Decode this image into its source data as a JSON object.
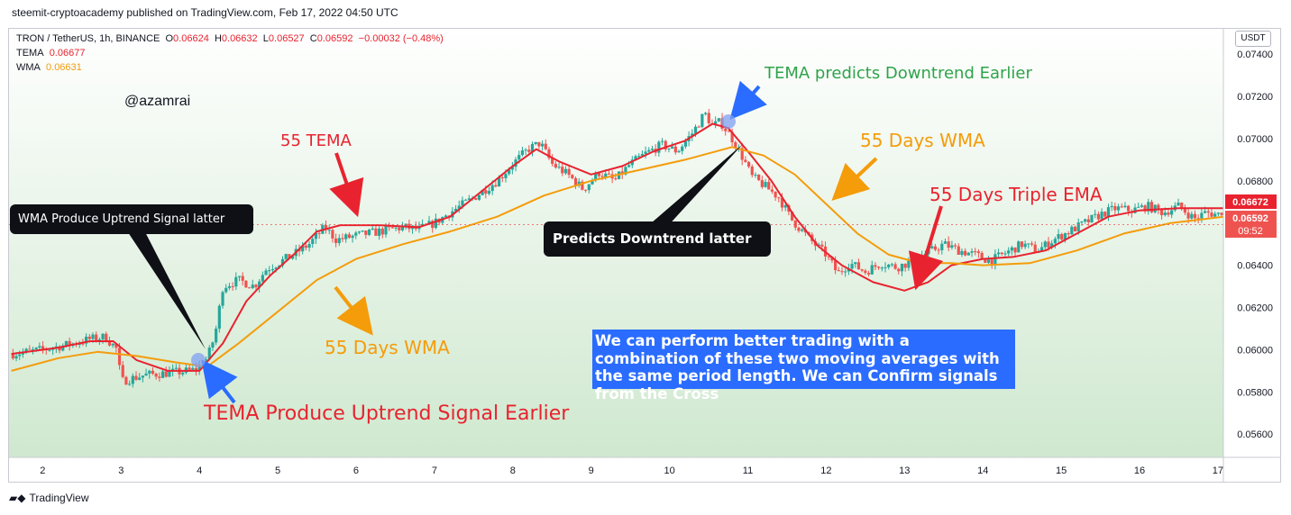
{
  "header": {
    "published": "steemit-cryptoacademy published on TradingView.com, Feb 17, 2022 04:50 UTC"
  },
  "legend": {
    "symbol": "TRON / TetherUS, 1h, BINANCE",
    "o_label": "O",
    "o_value": "0.06624",
    "h_label": "H",
    "h_value": "0.06632",
    "l_label": "L",
    "l_value": "0.06527",
    "c_label": "C",
    "c_value": "0.06592",
    "change": "−0.00032 (−0.48%)",
    "tema_label": "TEMA",
    "tema_value": "0.06677",
    "wma_label": "WMA",
    "wma_value": "0.06631"
  },
  "handle": "@azamrai",
  "currency_button": "USDT",
  "annotations": {
    "tema_downtrend": "TEMA predicts Downtrend Earlier",
    "tema_55": "55 TEMA",
    "wma_55_top": "55 Days WMA",
    "triple_ema": "55 Days Triple EMA",
    "wma_55_bottom": "55 Days WMA",
    "tema_uptrend": "TEMA Produce Uptrend Signal Earlier",
    "wma_uptrend_callout": "WMA Produce Uptrend Signal latter",
    "downtrend_callout": "Predicts Downtrend latter",
    "note": "We can perform better trading with a combination of these two moving averages with the same period length. We can Confirm signals from the Cross"
  },
  "price_labels": {
    "tema_price": "0.06672",
    "last_price": "0.06592",
    "countdown": "09:52"
  },
  "footer": {
    "brand": "TradingView"
  },
  "colors": {
    "up": "#26a69a",
    "down": "#ef5350",
    "tema": "#e8232f",
    "wma": "#f49c0a",
    "bg_top": "#ffffff",
    "bg_bottom": "#cfe8cf",
    "note_bg": "#2a6cff"
  },
  "chart_data": {
    "type": "candlestick",
    "x_ticks": [
      "2",
      "3",
      "4",
      "5",
      "6",
      "7",
      "8",
      "9",
      "10",
      "11",
      "12",
      "13",
      "14",
      "15",
      "16",
      "17"
    ],
    "y_ticks": [
      "0.07400",
      "0.07200",
      "0.07000",
      "0.06800",
      "0.06600",
      "0.06400",
      "0.06200",
      "0.06000",
      "0.05800",
      "0.05600"
    ],
    "ylim": [
      0.0549,
      0.0752
    ],
    "xlim": [
      1.57,
      17.07
    ],
    "close_path": [
      [
        1.6,
        0.0598
      ],
      [
        2.0,
        0.06
      ],
      [
        2.4,
        0.0603
      ],
      [
        2.6,
        0.0605
      ],
      [
        2.8,
        0.0606
      ],
      [
        2.95,
        0.06
      ],
      [
        3.0,
        0.0585
      ],
      [
        3.3,
        0.0588
      ],
      [
        3.6,
        0.0589
      ],
      [
        3.9,
        0.059
      ],
      [
        4.0,
        0.0592
      ],
      [
        4.1,
        0.0596
      ],
      [
        4.2,
        0.0607
      ],
      [
        4.3,
        0.063
      ],
      [
        4.5,
        0.0633
      ],
      [
        4.7,
        0.063
      ],
      [
        4.85,
        0.0638
      ],
      [
        5.0,
        0.0641
      ],
      [
        5.2,
        0.0645
      ],
      [
        5.4,
        0.065
      ],
      [
        5.6,
        0.0658
      ],
      [
        5.75,
        0.0652
      ],
      [
        6.0,
        0.0654
      ],
      [
        6.3,
        0.0656
      ],
      [
        6.6,
        0.0658
      ],
      [
        6.8,
        0.0657
      ],
      [
        7.0,
        0.066
      ],
      [
        7.2,
        0.0665
      ],
      [
        7.5,
        0.0672
      ],
      [
        7.8,
        0.068
      ],
      [
        8.0,
        0.0688
      ],
      [
        8.2,
        0.0695
      ],
      [
        8.35,
        0.0698
      ],
      [
        8.5,
        0.0688
      ],
      [
        8.7,
        0.0683
      ],
      [
        8.9,
        0.0676
      ],
      [
        9.1,
        0.0684
      ],
      [
        9.3,
        0.068
      ],
      [
        9.5,
        0.0688
      ],
      [
        9.7,
        0.0693
      ],
      [
        9.9,
        0.0697
      ],
      [
        10.1,
        0.0694
      ],
      [
        10.3,
        0.0703
      ],
      [
        10.45,
        0.0712
      ],
      [
        10.55,
        0.0706
      ],
      [
        10.65,
        0.0708
      ],
      [
        10.8,
        0.07
      ],
      [
        10.95,
        0.069
      ],
      [
        11.05,
        0.0682
      ],
      [
        11.2,
        0.0678
      ],
      [
        11.4,
        0.0672
      ],
      [
        11.55,
        0.0662
      ],
      [
        11.7,
        0.0656
      ],
      [
        11.85,
        0.065
      ],
      [
        12.0,
        0.0645
      ],
      [
        12.15,
        0.0636
      ],
      [
        12.3,
        0.0641
      ],
      [
        12.5,
        0.0637
      ],
      [
        12.7,
        0.0641
      ],
      [
        12.9,
        0.0639
      ],
      [
        13.1,
        0.0642
      ],
      [
        13.3,
        0.0646
      ],
      [
        13.5,
        0.065
      ],
      [
        13.7,
        0.0647
      ],
      [
        13.9,
        0.0645
      ],
      [
        14.1,
        0.0642
      ],
      [
        14.3,
        0.0646
      ],
      [
        14.5,
        0.065
      ],
      [
        14.7,
        0.0647
      ],
      [
        14.9,
        0.0652
      ],
      [
        15.1,
        0.0656
      ],
      [
        15.3,
        0.066
      ],
      [
        15.5,
        0.0664
      ],
      [
        15.7,
        0.0667
      ],
      [
        15.9,
        0.0666
      ],
      [
        16.1,
        0.0668
      ],
      [
        16.3,
        0.0665
      ],
      [
        16.5,
        0.0668
      ],
      [
        16.7,
        0.0662
      ],
      [
        16.85,
        0.0665
      ],
      [
        17.0,
        0.0664
      ],
      [
        17.06,
        0.0666
      ]
    ],
    "series": [
      {
        "name": "TEMA",
        "points": [
          [
            1.6,
            0.0598
          ],
          [
            2.2,
            0.0601
          ],
          [
            2.6,
            0.0604
          ],
          [
            2.9,
            0.0604
          ],
          [
            3.2,
            0.0595
          ],
          [
            3.6,
            0.059
          ],
          [
            4.0,
            0.059
          ],
          [
            4.3,
            0.0603
          ],
          [
            4.6,
            0.0623
          ],
          [
            4.9,
            0.0635
          ],
          [
            5.2,
            0.0645
          ],
          [
            5.5,
            0.0656
          ],
          [
            5.8,
            0.0659
          ],
          [
            6.3,
            0.0659
          ],
          [
            6.8,
            0.0658
          ],
          [
            7.2,
            0.0663
          ],
          [
            7.6,
            0.0675
          ],
          [
            8.0,
            0.0687
          ],
          [
            8.3,
            0.0695
          ],
          [
            8.6,
            0.0689
          ],
          [
            9.0,
            0.0683
          ],
          [
            9.4,
            0.0687
          ],
          [
            9.8,
            0.0694
          ],
          [
            10.2,
            0.0699
          ],
          [
            10.55,
            0.0707
          ],
          [
            10.75,
            0.0705
          ],
          [
            11.0,
            0.0694
          ],
          [
            11.3,
            0.068
          ],
          [
            11.6,
            0.0663
          ],
          [
            11.9,
            0.0649
          ],
          [
            12.2,
            0.064
          ],
          [
            12.6,
            0.0632
          ],
          [
            13.0,
            0.0628
          ],
          [
            13.3,
            0.0632
          ],
          [
            13.6,
            0.064
          ],
          [
            14.0,
            0.0643
          ],
          [
            14.4,
            0.0644
          ],
          [
            14.8,
            0.0647
          ],
          [
            15.2,
            0.0655
          ],
          [
            15.6,
            0.0663
          ],
          [
            16.0,
            0.0666
          ],
          [
            16.5,
            0.0667
          ],
          [
            17.07,
            0.0667
          ]
        ]
      },
      {
        "name": "WMA",
        "points": [
          [
            1.6,
            0.059
          ],
          [
            2.2,
            0.0596
          ],
          [
            2.7,
            0.0599
          ],
          [
            3.2,
            0.0597
          ],
          [
            3.7,
            0.0594
          ],
          [
            4.1,
            0.0592
          ],
          [
            4.5,
            0.0603
          ],
          [
            5.0,
            0.0618
          ],
          [
            5.5,
            0.0633
          ],
          [
            6.0,
            0.0643
          ],
          [
            6.6,
            0.065
          ],
          [
            7.2,
            0.0656
          ],
          [
            7.8,
            0.0663
          ],
          [
            8.4,
            0.0673
          ],
          [
            9.0,
            0.068
          ],
          [
            9.6,
            0.0685
          ],
          [
            10.2,
            0.069
          ],
          [
            10.8,
            0.0696
          ],
          [
            11.2,
            0.0692
          ],
          [
            11.6,
            0.0683
          ],
          [
            12.0,
            0.0669
          ],
          [
            12.4,
            0.0655
          ],
          [
            12.8,
            0.0645
          ],
          [
            13.2,
            0.0641
          ],
          [
            13.6,
            0.0641
          ],
          [
            14.0,
            0.064
          ],
          [
            14.6,
            0.0641
          ],
          [
            15.2,
            0.0647
          ],
          [
            15.8,
            0.0655
          ],
          [
            16.4,
            0.066
          ],
          [
            17.07,
            0.0663
          ]
        ]
      }
    ],
    "horizontal_line": 0.06592
  }
}
